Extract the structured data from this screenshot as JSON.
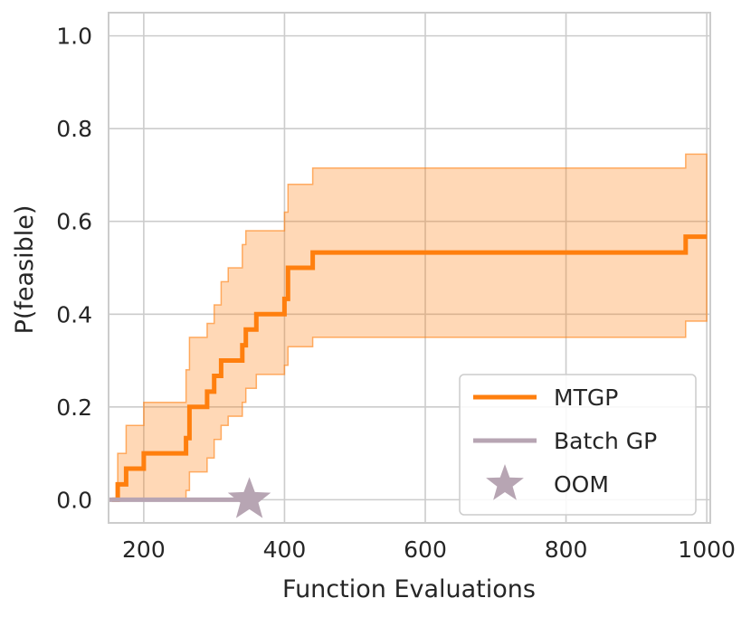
{
  "chart_data": {
    "type": "line",
    "xlabel": "Function Evaluations",
    "ylabel": "P(feasible)",
    "xlim": [
      150,
      1005
    ],
    "ylim": [
      -0.05,
      1.05
    ],
    "xticks": [
      200,
      400,
      600,
      800,
      1000
    ],
    "yticks": [
      0.0,
      0.2,
      0.4,
      0.6,
      0.8,
      1.0
    ],
    "xtick_labels": [
      "200",
      "400",
      "600",
      "800",
      "1000"
    ],
    "ytick_labels": [
      "0.0",
      "0.2",
      "0.4",
      "0.6",
      "0.8",
      "1.0"
    ],
    "grid": true,
    "legend_position": "lower-right",
    "series": [
      {
        "name": "MTGP",
        "color": "#ff7f0e",
        "style": "step",
        "x": [
          155,
          163,
          175,
          200,
          260,
          265,
          290,
          300,
          310,
          320,
          340,
          345,
          360,
          400,
          405,
          410,
          440,
          550,
          700,
          970,
          1000
        ],
        "y": [
          0.0,
          0.033,
          0.067,
          0.1,
          0.133,
          0.2,
          0.233,
          0.267,
          0.3,
          0.3,
          0.333,
          0.367,
          0.4,
          0.433,
          0.5,
          0.5,
          0.533,
          0.533,
          0.533,
          0.567,
          0.567
        ],
        "upper": [
          0.0,
          0.1,
          0.16,
          0.21,
          0.28,
          0.35,
          0.38,
          0.42,
          0.47,
          0.5,
          0.55,
          0.58,
          0.58,
          0.62,
          0.68,
          0.68,
          0.715,
          0.715,
          0.715,
          0.745,
          0.745
        ],
        "lower": [
          0.0,
          0.0,
          0.0,
          0.0,
          0.02,
          0.06,
          0.09,
          0.13,
          0.16,
          0.18,
          0.21,
          0.24,
          0.27,
          0.29,
          0.33,
          0.33,
          0.35,
          0.35,
          0.35,
          0.385,
          0.385
        ]
      },
      {
        "name": "Batch GP",
        "color": "#b7a5b3",
        "style": "line",
        "x": [
          150,
          350
        ],
        "y": [
          0.0,
          0.0
        ]
      }
    ],
    "markers": [
      {
        "name": "OOM",
        "marker": "star",
        "color": "#b7a5b3",
        "x": 350,
        "y": 0.0
      }
    ],
    "legend": [
      {
        "label": "MTGP",
        "kind": "line",
        "color": "#ff7f0e"
      },
      {
        "label": "Batch GP",
        "kind": "line",
        "color": "#b7a5b3"
      },
      {
        "label": "OOM",
        "kind": "star",
        "color": "#b7a5b3"
      }
    ]
  }
}
